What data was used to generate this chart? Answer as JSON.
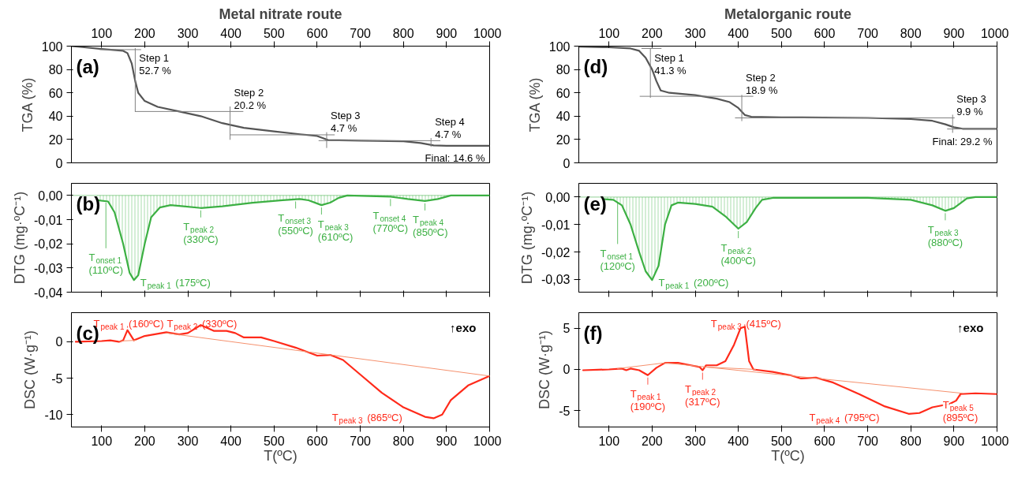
{
  "chart_data": [
    {
      "type": "line",
      "title": "Metal nitrate route",
      "ylabel": "TGA (%)",
      "xlim": [
        30,
        1000
      ],
      "xticks": [
        100,
        200,
        300,
        400,
        500,
        600,
        700,
        800,
        900,
        1000
      ],
      "ylim": [
        0,
        100
      ],
      "yticks": [
        0,
        20,
        40,
        60,
        80,
        100
      ],
      "grid": false,
      "series": [
        {
          "color": "#555555",
          "x": [
            30,
            60,
            100,
            150,
            160,
            170,
            178,
            185,
            200,
            230,
            280,
            330,
            380,
            430,
            500,
            560,
            600,
            615,
            625,
            700,
            800,
            840,
            870,
            900,
            1000
          ],
          "values": [
            100,
            99,
            97.5,
            96,
            94,
            85,
            70,
            60,
            53,
            48,
            44,
            40,
            34,
            30,
            27,
            24.5,
            23,
            21,
            19.5,
            19,
            18.5,
            17,
            15,
            14.6,
            14.6
          ]
        },
        {
          "color": "#808080",
          "x": [
            96,
            191,
            null,
            178,
            178,
            null,
            178,
            428,
            null,
            398,
            398,
            null,
            398,
            640,
            null,
            622,
            622,
            null,
            604,
            885,
            null,
            864,
            864
          ],
          "values": [
            97,
            97,
            null,
            98,
            44,
            null,
            44,
            44,
            null,
            48,
            20,
            null,
            24,
            24,
            null,
            26,
            13,
            null,
            19,
            19,
            null,
            21,
            14
          ]
        }
      ],
      "annotations": [
        "(a)",
        "Step 1 52.7 %",
        "Step 2 20.2 %",
        "Step 3 4.7 %",
        "Step 4 4.7 %",
        "Final: 14.6 %"
      ]
    },
    {
      "type": "line",
      "title": "Metalorganic route",
      "ylabel": "TGA (%)",
      "xlim": [
        30,
        1000
      ],
      "xticks": [
        100,
        200,
        300,
        400,
        500,
        600,
        700,
        800,
        900,
        1000
      ],
      "ylim": [
        0,
        100
      ],
      "yticks": [
        0,
        20,
        40,
        60,
        80,
        100
      ],
      "grid": false,
      "series": [
        {
          "color": "#555555",
          "x": [
            30,
            100,
            150,
            170,
            185,
            200,
            210,
            220,
            240,
            300,
            350,
            380,
            400,
            415,
            430,
            500,
            700,
            800,
            850,
            880,
            900,
            920,
            1000
          ],
          "values": [
            99.5,
            99,
            98,
            96,
            90,
            80,
            70,
            62,
            60,
            58,
            55,
            52,
            47,
            41,
            39.5,
            39,
            38.5,
            37.5,
            36,
            33,
            30.5,
            29.2,
            29.2
          ]
        },
        {
          "color": "#808080",
          "x": [
            176,
            221,
            null,
            196,
            196,
            null,
            172,
            434,
            null,
            408,
            408,
            null,
            393,
            901,
            null,
            897,
            897,
            null,
            885,
            1000
          ],
          "values": [
            98,
            98,
            null,
            98,
            56,
            null,
            57,
            57,
            null,
            58,
            36,
            null,
            38.5,
            38.5,
            null,
            41,
            26,
            null,
            29,
            29
          ]
        }
      ],
      "annotations": [
        "(d)",
        "Step 1 41.3 %",
        "Step 2 18.9 %",
        "Step 3 9.9 %",
        "Final: 29.2 %"
      ]
    },
    {
      "type": "area",
      "ylabel": "DTG (mg·ºC⁻¹)",
      "xlim": [
        30,
        1000
      ],
      "xticks": [
        100,
        200,
        300,
        400,
        500,
        600,
        700,
        800,
        900,
        1000
      ],
      "tick_labels": "y",
      "ylim": [
        -0.04,
        0.005
      ],
      "yticks": [
        {
          "value": 0,
          "label": "0,00"
        },
        {
          "value": -0.01,
          "label": "-0,01"
        },
        {
          "value": -0.02,
          "label": "-0,02"
        },
        {
          "value": -0.03,
          "label": "-0,03"
        },
        {
          "value": -0.04,
          "label": "-0,04"
        }
      ],
      "grid": false,
      "ref_lines": [
        {
          "axis": "y",
          "value": 0,
          "color": "#3cb043"
        }
      ],
      "series": [
        {
          "color": "#3cb043",
          "x": [
            90,
            115,
            130,
            150,
            165,
            175,
            185,
            200,
            215,
            235,
            260,
            290,
            330,
            380,
            450,
            520,
            560,
            580,
            610,
            630,
            650,
            670,
            770,
            810,
            850,
            880,
            910,
            1000
          ],
          "values": [
            -0.002,
            -0.0025,
            -0.007,
            -0.02,
            -0.032,
            -0.035,
            -0.033,
            -0.02,
            -0.009,
            -0.005,
            -0.004,
            -0.0045,
            -0.0052,
            -0.0045,
            -0.003,
            -0.002,
            -0.0015,
            -0.002,
            -0.004,
            -0.003,
            -0.001,
            0,
            -0.0005,
            -0.0015,
            -0.0023,
            -0.0015,
            0,
            0
          ]
        }
      ],
      "annotations": [
        "(b)",
        {
          "text": "T$_{onset 1}$ (110ºC)",
          "x": 110,
          "y": -0.002
        },
        {
          "text": "T$_{peak 1}$ (175ºC)",
          "x": 175,
          "y": -0.035
        },
        {
          "text": "T$_{peak 2}$ (330ºC)",
          "x": 330,
          "y": -0.0052
        },
        {
          "text": "T$_{onset 3}$ (550ºC)",
          "x": 550,
          "y": -0.0015
        },
        {
          "text": "T$_{peak 3}$ (610ºC)",
          "x": 610,
          "y": -0.004
        },
        {
          "text": "T$_{onset 4}$ (770ºC)",
          "x": 770,
          "y": -0.0005
        },
        {
          "text": "T$_{peak 4}$ (850ºC)",
          "x": 850,
          "y": -0.0023
        }
      ]
    },
    {
      "type": "area",
      "ylabel": "DTG (mg·ºC⁻¹)",
      "xlim": [
        30,
        1000
      ],
      "xticks": [
        100,
        200,
        300,
        400,
        500,
        600,
        700,
        800,
        900,
        1000
      ],
      "tick_labels": "y",
      "ylim": [
        -0.0346,
        0.005
      ],
      "yticks": [
        {
          "value": 0,
          "label": "0,00"
        },
        {
          "value": -0.01,
          "label": "-0,01"
        },
        {
          "value": -0.02,
          "label": "-0,02"
        },
        {
          "value": -0.03,
          "label": "-0,03"
        }
      ],
      "grid": false,
      "ref_lines": [
        {
          "axis": "y",
          "value": 0,
          "color": "#3cb043"
        }
      ],
      "series": [
        {
          "color": "#3cb043",
          "x": [
            90,
            110,
            130,
            150,
            170,
            185,
            200,
            215,
            230,
            245,
            260,
            300,
            340,
            370,
            400,
            420,
            440,
            455,
            480,
            700,
            800,
            850,
            880,
            900,
            930,
            950,
            1000
          ],
          "values": [
            -0.0008,
            -0.001,
            -0.003,
            -0.01,
            -0.02,
            -0.027,
            -0.0302,
            -0.025,
            -0.01,
            -0.003,
            -0.002,
            -0.0025,
            -0.0035,
            -0.007,
            -0.0115,
            -0.009,
            -0.004,
            -0.001,
            -0.0003,
            -0.0003,
            -0.001,
            -0.003,
            -0.005,
            -0.004,
            -0.0005,
            0,
            0
          ]
        }
      ],
      "annotations": [
        "(e)",
        {
          "text": "T$_{onset 1}$ (120ºC)",
          "x": 120,
          "y": -0.001
        },
        {
          "text": "T$_{peak 1}$ (200ºC)",
          "x": 200,
          "y": -0.0302
        },
        {
          "text": "T$_{peak 2}$ (400ºC)",
          "x": 400,
          "y": -0.0115
        },
        {
          "text": "T$_{peak 3}$ (880ºC)",
          "x": 880,
          "y": -0.005
        }
      ]
    },
    {
      "type": "line",
      "ylabel": "DSC (W·g⁻¹)",
      "xlabel": "T(ºC)",
      "xlim": [
        30,
        1000
      ],
      "xticks": [
        100,
        200,
        300,
        400,
        500,
        600,
        700,
        800,
        900,
        1000
      ],
      "ylim": [
        -11.7,
        4
      ],
      "yticks": [
        0,
        -5,
        -10
      ],
      "grid": false,
      "series": [
        {
          "color": "#ff2a1a",
          "x": [
            40,
            100,
            120,
            140,
            150,
            160,
            175,
            200,
            250,
            280,
            300,
            330,
            360,
            390,
            410,
            430,
            470,
            500,
            550,
            600,
            630,
            660,
            700,
            750,
            800,
            850,
            870,
            890,
            910,
            950,
            1000
          ],
          "values": [
            0,
            0.1,
            0.2,
            0,
            0.2,
            1.6,
            0.2,
            0.8,
            1.3,
            1.0,
            1.2,
            2.3,
            1.5,
            1.5,
            1.2,
            0.6,
            0.6,
            0.1,
            -0.8,
            -1.9,
            -1.8,
            -2.5,
            -4.5,
            -7,
            -9,
            -10.3,
            -10.5,
            -10,
            -8,
            -6,
            -4.7
          ]
        },
        {
          "color": "#f5916e",
          "x": [
            140,
            180,
            null,
            250,
            1000
          ],
          "values": [
            0.1,
            0.2,
            null,
            1.2,
            -4.7
          ]
        }
      ],
      "annotations": [
        "(c)",
        "↑exo",
        {
          "text": "T$_{peak 1}$ (160ºC)",
          "x": 160,
          "y": 1.6
        },
        {
          "text": "T$_{peak 2}$ (330ºC)",
          "x": 330,
          "y": 2.3
        },
        {
          "text": "T$_{peak 3}$ (865ºC)",
          "x": 865,
          "y": -10.5
        }
      ]
    },
    {
      "type": "line",
      "ylabel": "DSC (W·g⁻¹)",
      "xlabel": "T(ºC)",
      "xlim": [
        30,
        1000
      ],
      "xticks": [
        100,
        200,
        300,
        400,
        500,
        600,
        700,
        800,
        900,
        1000
      ],
      "ylim": [
        -7,
        6.9
      ],
      "yticks": [
        5,
        0,
        -5
      ],
      "grid": false,
      "series": [
        {
          "color": "#ff2a1a",
          "x": [
            40,
            100,
            130,
            140,
            150,
            170,
            190,
            210,
            230,
            260,
            290,
            310,
            317,
            325,
            350,
            370,
            390,
            405,
            415,
            425,
            435,
            480,
            520,
            545,
            580,
            620,
            680,
            740,
            795,
            820,
            850,
            890,
            905,
            915,
            950,
            1000
          ],
          "values": [
            -0.1,
            0,
            0.1,
            -0.1,
            0.1,
            -0.1,
            -0.7,
            0.2,
            0.8,
            0.8,
            0.5,
            0.3,
            -0.1,
            0.5,
            0.5,
            1,
            3,
            5,
            5.2,
            1,
            0,
            -0.3,
            -0.7,
            -1.1,
            -1.0,
            -1.6,
            -3,
            -4.5,
            -5.4,
            -5.3,
            -4.6,
            -4.2,
            -3.8,
            -3.0,
            -2.9,
            -3.0
          ]
        },
        {
          "color": "#f5916e",
          "x": [
            120,
            230,
            920,
            null,
            320,
            440
          ],
          "values": [
            0.1,
            0.8,
            -2.9,
            null,
            0.3,
            0
          ]
        }
      ],
      "annotations": [
        "(f)",
        "↑exo",
        {
          "text": "T$_{peak 1}$ (190ºC)",
          "x": 190,
          "y": -0.7
        },
        {
          "text": "T$_{peak 2}$ (317ºC)",
          "x": 317,
          "y": -0.1
        },
        {
          "text": "T$_{peak 3}$ (415ºC)",
          "x": 415,
          "y": 5.2
        },
        {
          "text": "T$_{peak 4}$ (795ºC)",
          "x": 795,
          "y": -5.4
        },
        {
          "text": "T$_{peak 5}$ (895ºC)",
          "x": 915,
          "y": -3.0
        }
      ]
    }
  ]
}
